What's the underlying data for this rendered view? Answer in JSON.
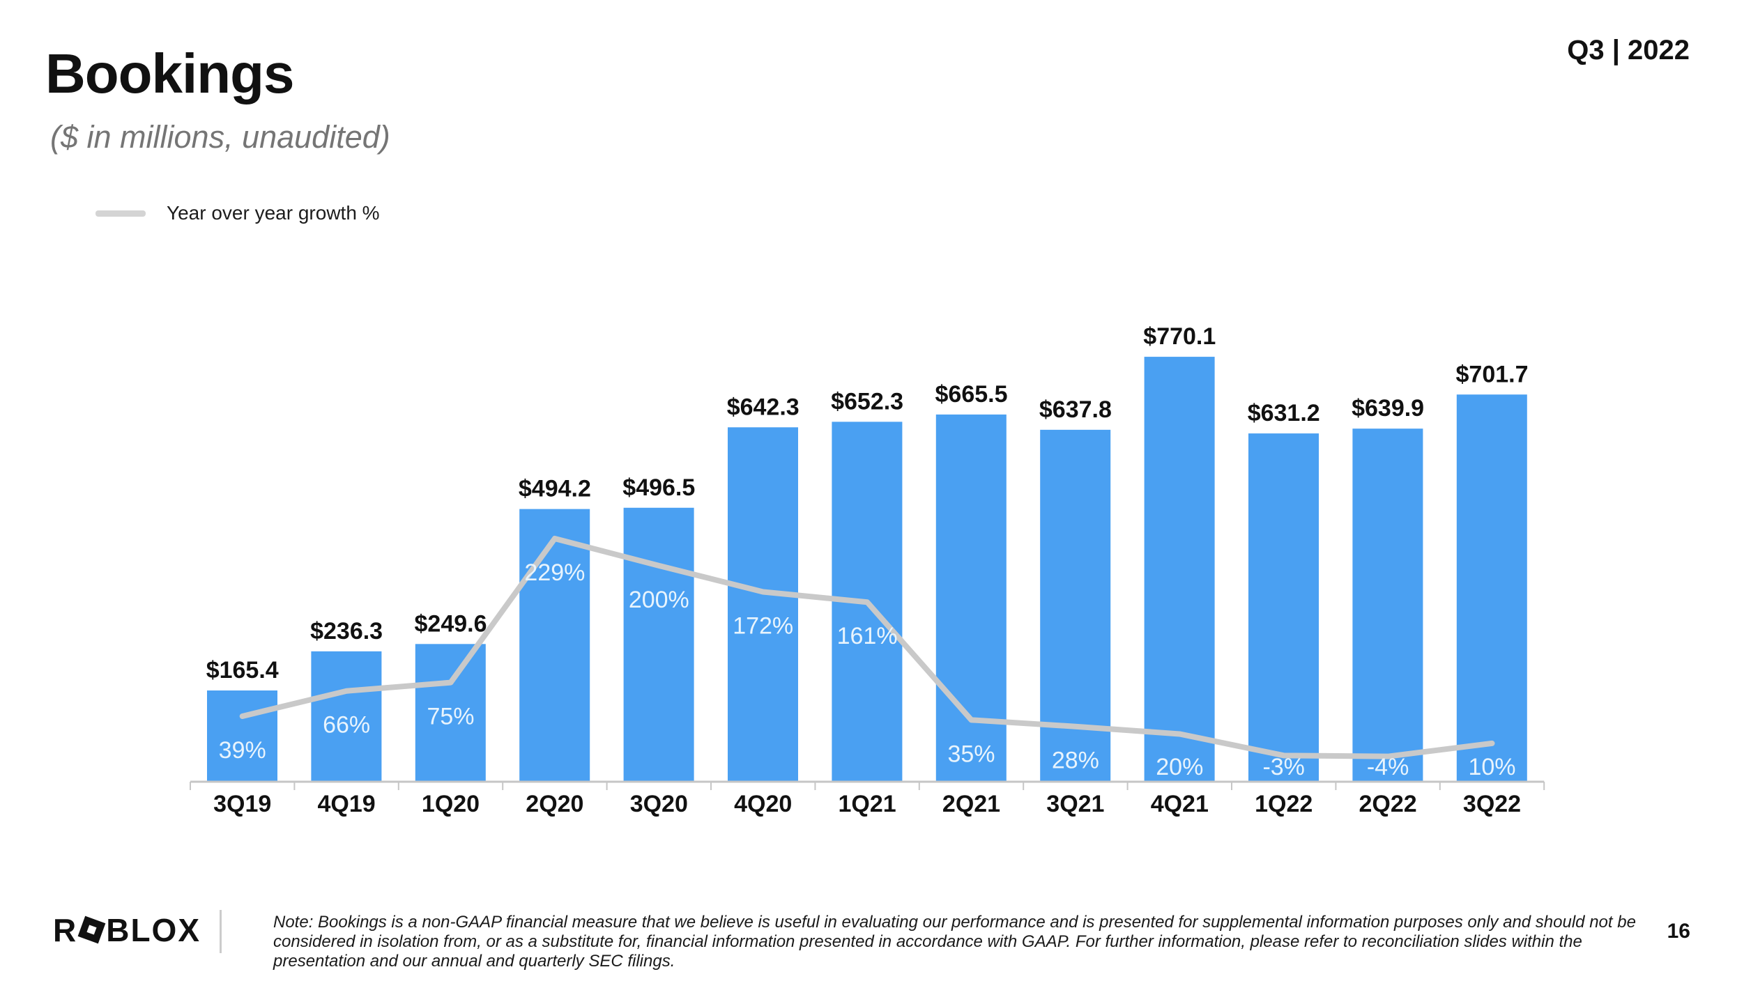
{
  "slide": {
    "title": "Bookings",
    "subtitle": "($ in millions, unaudited)",
    "quarter_label": "Q3 | 2022",
    "page_number": "16",
    "footnote": "Note: Bookings is a non-GAAP financial measure that we believe is useful in evaluating our performance and is presented for supplemental information purposes only and should not be considered in isolation from, or as a substitute for, financial information presented in accordance with GAAP. For further information, please refer to reconciliation slides within the presentation and our annual and quarterly SEC filings.",
    "logo_prefix": "R",
    "logo_suffix": "BLOX"
  },
  "legend": {
    "label": "Year over year growth %",
    "swatch_color": "#D4D4D4"
  },
  "colors": {
    "bar_blue": "#4AA0F2",
    "growth_line_gray": "#C9C9C9",
    "axis_gray": "#C6C6C6",
    "pct_label": "#E8F4FD",
    "value_label": "#111111",
    "subtitle_gray": "#757575"
  },
  "chart_data": {
    "type": "bar",
    "title": "Bookings ($ in millions, unaudited)",
    "categories": [
      "3Q19",
      "4Q19",
      "1Q20",
      "2Q20",
      "3Q20",
      "4Q20",
      "1Q21",
      "2Q21",
      "3Q21",
      "4Q21",
      "1Q22",
      "2Q22",
      "3Q22"
    ],
    "series": [
      {
        "name": "Bookings ($ in millions)",
        "type": "bar",
        "color": "#4AA0F2",
        "values": [
          165.4,
          236.3,
          249.6,
          494.2,
          496.5,
          642.3,
          652.3,
          665.5,
          637.8,
          770.1,
          631.2,
          639.9,
          701.7
        ],
        "labels": [
          "$165.4",
          "$236.3",
          "$249.6",
          "$494.2",
          "$496.5",
          "$642.3",
          "$652.3",
          "$665.5",
          "$637.8",
          "$770.1",
          "$631.2",
          "$639.9",
          "$701.7"
        ]
      },
      {
        "name": "Year over year growth %",
        "type": "line",
        "color": "#C9C9C9",
        "values": [
          39,
          66,
          75,
          229,
          200,
          172,
          161,
          35,
          28,
          20,
          -3,
          -4,
          10
        ],
        "labels": [
          "39%",
          "66%",
          "75%",
          "229%",
          "200%",
          "172%",
          "161%",
          "35%",
          "28%",
          "20%",
          "-3%",
          "-4%",
          "10%"
        ]
      }
    ],
    "xlabel": "",
    "ylabel": "",
    "gridlines": false,
    "y_axis_visible": false,
    "legend_position": "top-left",
    "value_labels_position": "above-bars",
    "growth_labels_position": "inside-bars-below-line"
  }
}
